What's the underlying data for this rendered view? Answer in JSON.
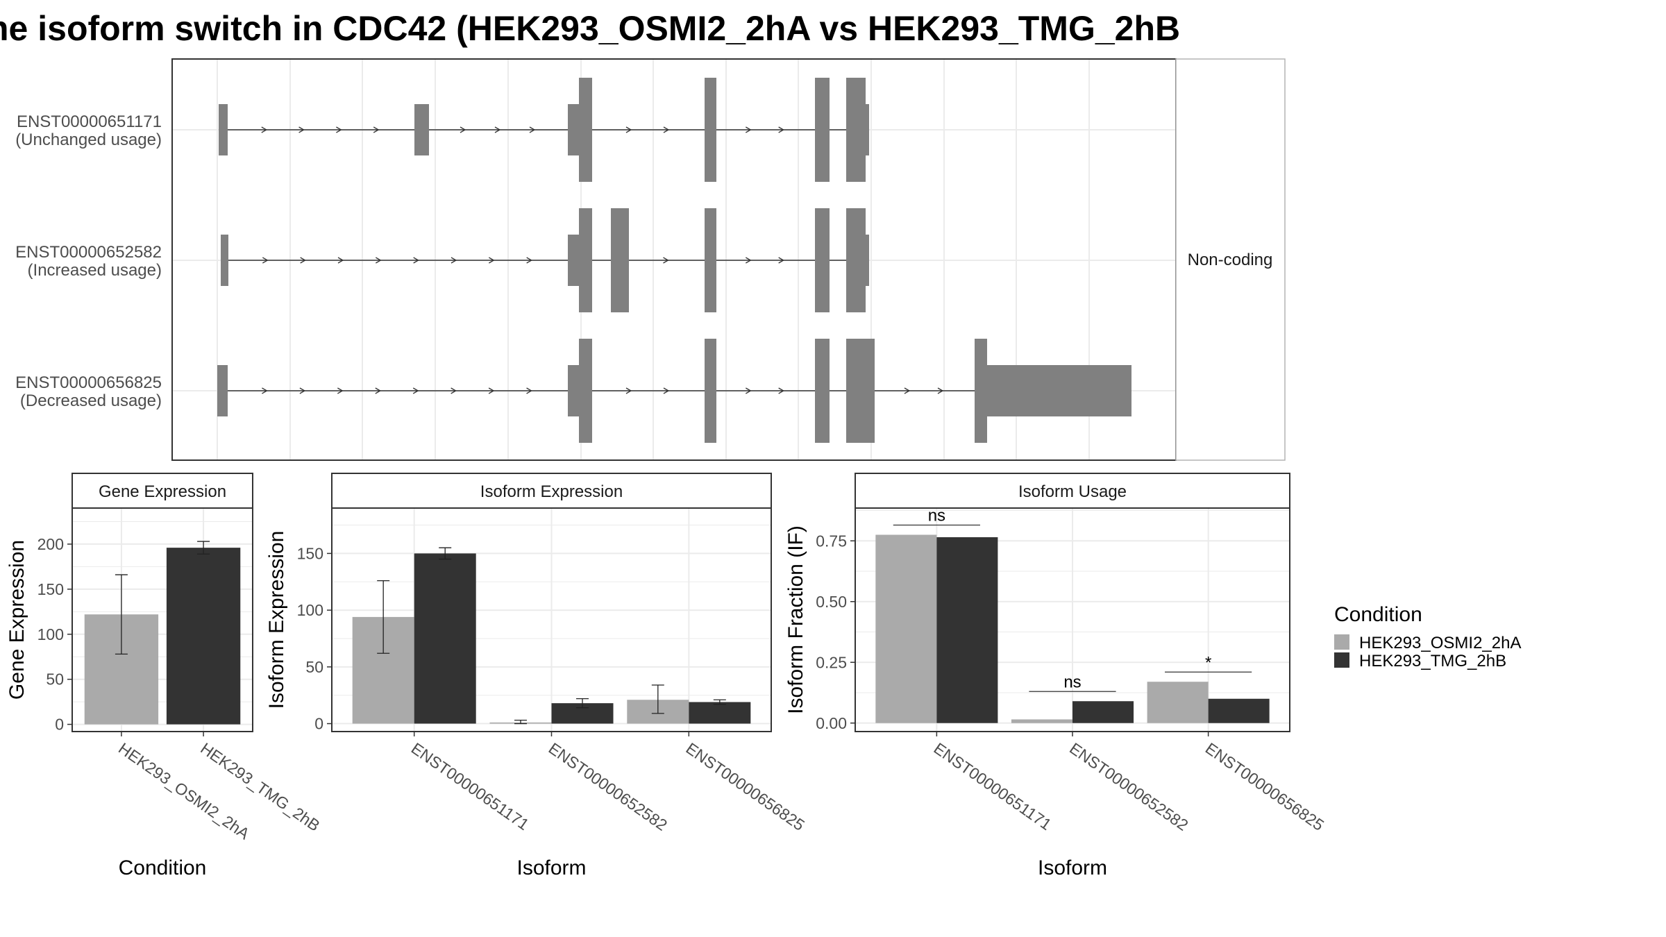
{
  "title": "he isoform switch in CDC42 (HEK293_OSMI2_2hA vs HEK293_TMG_2hB",
  "colors": {
    "cond_a": "#aaaaaa",
    "cond_b": "#333333",
    "exon": "#808080",
    "grid": "#ebebeb",
    "panel_border": "#333333",
    "strip_bg": "#ffffff"
  },
  "chart_data": [
    {
      "type": "gene-structure",
      "name": "transcript-structure",
      "strip_label": "Non-coding",
      "transcripts": [
        {
          "id": "ENST00000651171",
          "usage": "(Unchanged usage)"
        },
        {
          "id": "ENST00000652582",
          "usage": "(Increased usage)"
        },
        {
          "id": "ENST00000656825",
          "usage": "(Decreased usage)"
        }
      ]
    },
    {
      "type": "bar",
      "name": "gene-expression",
      "strip": "Gene Expression",
      "xlabel": "Condition",
      "ylabel": "Gene Expression",
      "ylim": [
        -8,
        240
      ],
      "yticks": [
        0,
        50,
        100,
        150,
        200
      ],
      "ytick_labels": [
        "0",
        "50",
        "100",
        "150",
        "200"
      ],
      "categories": [
        "HEK293_OSMI2_2hA",
        "HEK293_TMG_2hB"
      ],
      "grouped": false,
      "bars": [
        {
          "category": "HEK293_OSMI2_2hA",
          "condition": "HEK293_OSMI2_2hA",
          "value": 122,
          "err": [
            78,
            166
          ]
        },
        {
          "category": "HEK293_TMG_2hB",
          "condition": "HEK293_TMG_2hB",
          "value": 196,
          "err": [
            189,
            203
          ]
        }
      ]
    },
    {
      "type": "bar",
      "name": "isoform-expression",
      "strip": "Isoform Expression",
      "xlabel": "Isoform",
      "ylabel": "Isoform Expression",
      "ylim": [
        -7,
        190
      ],
      "yticks": [
        0,
        50,
        100,
        150
      ],
      "ytick_labels": [
        "0",
        "50",
        "100",
        "150"
      ],
      "categories": [
        "ENST00000651171",
        "ENST00000652582",
        "ENST00000656825"
      ],
      "grouped": true,
      "series": [
        {
          "name": "HEK293_OSMI2_2hA",
          "values": [
            94,
            1,
            21
          ],
          "err": [
            [
              62,
              126
            ],
            [
              0,
              3
            ],
            [
              9,
              34
            ]
          ]
        },
        {
          "name": "HEK293_TMG_2hB",
          "values": [
            150,
            18,
            19
          ],
          "err": [
            [
              145,
              155
            ],
            [
              14,
              22
            ],
            [
              17,
              21
            ]
          ]
        }
      ]
    },
    {
      "type": "bar",
      "name": "isoform-usage",
      "strip": "Isoform Usage",
      "xlabel": "Isoform",
      "ylabel": "Isoform Fraction (IF)",
      "ylim": [
        -0.035,
        0.885
      ],
      "yticks": [
        0,
        0.25,
        0.5,
        0.75
      ],
      "ytick_labels": [
        "0.00",
        "0.25",
        "0.50",
        "0.75"
      ],
      "categories": [
        "ENST00000651171",
        "ENST00000652582",
        "ENST00000656825"
      ],
      "grouped": true,
      "series": [
        {
          "name": "HEK293_OSMI2_2hA",
          "values": [
            0.775,
            0.015,
            0.17
          ]
        },
        {
          "name": "HEK293_TMG_2hB",
          "values": [
            0.765,
            0.09,
            0.1
          ]
        }
      ],
      "significance": [
        {
          "category": "ENST00000651171",
          "label": "ns",
          "y": 0.815
        },
        {
          "category": "ENST00000652582",
          "label": "ns",
          "y": 0.13
        },
        {
          "category": "ENST00000656825",
          "label": "*",
          "y": 0.21
        }
      ]
    }
  ],
  "legend": {
    "title": "Condition",
    "items": [
      {
        "label": "HEK293_OSMI2_2hA",
        "color": "#aaaaaa"
      },
      {
        "label": "HEK293_TMG_2hB",
        "color": "#333333"
      }
    ]
  }
}
